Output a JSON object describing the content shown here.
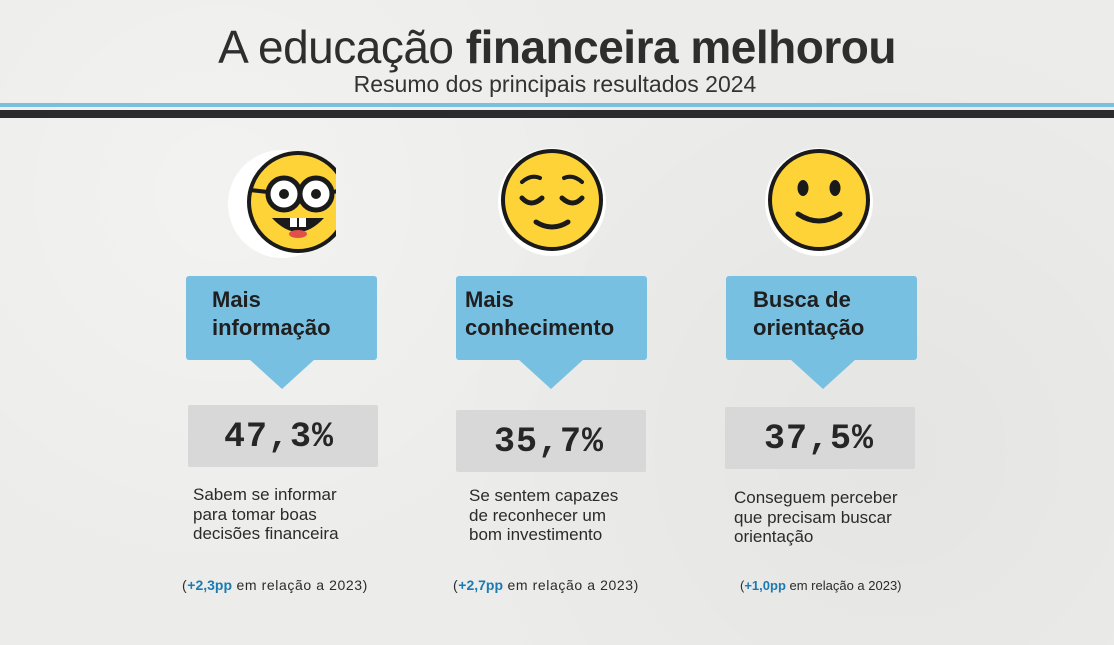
{
  "header": {
    "title_regular": "A educação ",
    "title_bold": "financeira melhorou",
    "subtitle": "Resumo dos principais resultados 2024"
  },
  "colors": {
    "accent_blue": "#78c0e1",
    "highlight_blue": "#1a7bb3",
    "dark_rule": "#2b2b2d",
    "emoji_yellow": "#fdd338"
  },
  "cards": [
    {
      "icon": "nerd-face-icon",
      "label": "Mais\ninformação",
      "value": "47,3%",
      "description": "Sabem se informar\npara tomar boas\ndecisões financeira",
      "delta_open": "(",
      "delta_pp": "+2,3pp",
      "delta_rest": " em relação a 2023)"
    },
    {
      "icon": "relieved-face-icon",
      "label": "Mais\nconhecimento",
      "value": "35,7%",
      "description": "Se sentem capazes\nde reconhecer um\nbom investimento",
      "delta_open": "(",
      "delta_pp": "+2,7pp",
      "delta_rest": " em relação a 2023)"
    },
    {
      "icon": "smiling-face-icon",
      "label": "Busca de\norientação",
      "value": "37,5%",
      "description": "Conseguem perceber\nque precisam buscar\norientação",
      "delta_open": "(",
      "delta_pp": "+1,0pp",
      "delta_rest": " em relação a 2023)"
    }
  ]
}
